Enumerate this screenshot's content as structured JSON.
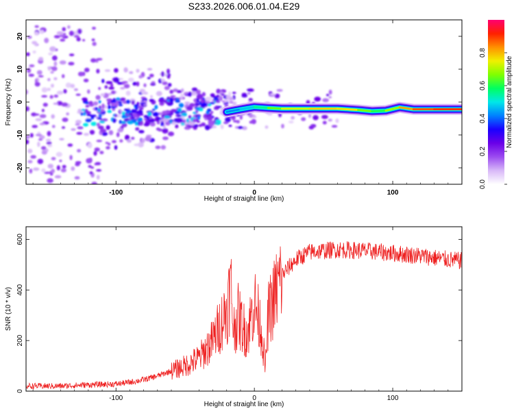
{
  "title": "S233.2026.006.01.04.E29",
  "chart_data": [
    {
      "type": "heatmap",
      "xlabel": "Height of straight line (km)",
      "ylabel": "Frequency (Hz)",
      "xlim": [
        -165,
        150
      ],
      "ylim": [
        -25,
        25
      ],
      "xticks": [
        -100,
        0,
        100
      ],
      "yticks": [
        20,
        10,
        0,
        -10,
        -20
      ],
      "colorbar": {
        "label": "Normalized spectral amplitude",
        "range": [
          0,
          1
        ],
        "ticks": [
          0.0,
          0.2,
          0.4,
          0.6,
          0.8
        ],
        "colors": [
          "#ffffff",
          "#d8b8f8",
          "#9c4cf0",
          "#6a00e8",
          "#1a00ff",
          "#0080ff",
          "#00e8e8",
          "#00ff60",
          "#80ff00",
          "#f0f000",
          "#ff9000",
          "#ff2000",
          "#ff0070"
        ]
      },
      "ridge": [
        {
          "x": -20,
          "y": -3.0,
          "a": 0.4
        },
        {
          "x": -10,
          "y": -2.2,
          "a": 0.45
        },
        {
          "x": 0,
          "y": -1.5,
          "a": 0.5
        },
        {
          "x": 10,
          "y": -1.8,
          "a": 0.6
        },
        {
          "x": 20,
          "y": -2.0,
          "a": 0.7
        },
        {
          "x": 40,
          "y": -2.0,
          "a": 0.75
        },
        {
          "x": 60,
          "y": -2.0,
          "a": 0.8
        },
        {
          "x": 75,
          "y": -2.4,
          "a": 0.72
        },
        {
          "x": 85,
          "y": -2.8,
          "a": 0.6
        },
        {
          "x": 95,
          "y": -2.6,
          "a": 0.6
        },
        {
          "x": 105,
          "y": -1.6,
          "a": 0.78
        },
        {
          "x": 115,
          "y": -2.2,
          "a": 0.85
        },
        {
          "x": 130,
          "y": -2.2,
          "a": 0.9
        },
        {
          "x": 150,
          "y": -2.2,
          "a": 0.9
        }
      ]
    },
    {
      "type": "line",
      "xlabel": "Height of straight line (km)",
      "ylabel": "SNR (10 * v/v)",
      "xlim": [
        -165,
        150
      ],
      "ylim": [
        0,
        650
      ],
      "xticks": [
        -100,
        0,
        100
      ],
      "yticks": [
        0,
        200,
        400,
        600
      ],
      "color": "#ee2020",
      "series": [
        {
          "name": "SNR",
          "x": [
            -165,
            -140,
            -120,
            -100,
            -90,
            -80,
            -70,
            -60,
            -50,
            -40,
            -30,
            -25,
            -20,
            -17,
            -15,
            -12,
            -8,
            -5,
            0,
            5,
            8,
            10,
            15,
            20,
            30,
            40,
            60,
            80,
            100,
            120,
            140,
            150
          ],
          "y": [
            20,
            20,
            25,
            28,
            35,
            45,
            60,
            80,
            100,
            130,
            200,
            260,
            320,
            420,
            240,
            300,
            250,
            230,
            350,
            250,
            90,
            300,
            380,
            460,
            520,
            550,
            560,
            555,
            545,
            535,
            520,
            515
          ]
        }
      ]
    }
  ]
}
